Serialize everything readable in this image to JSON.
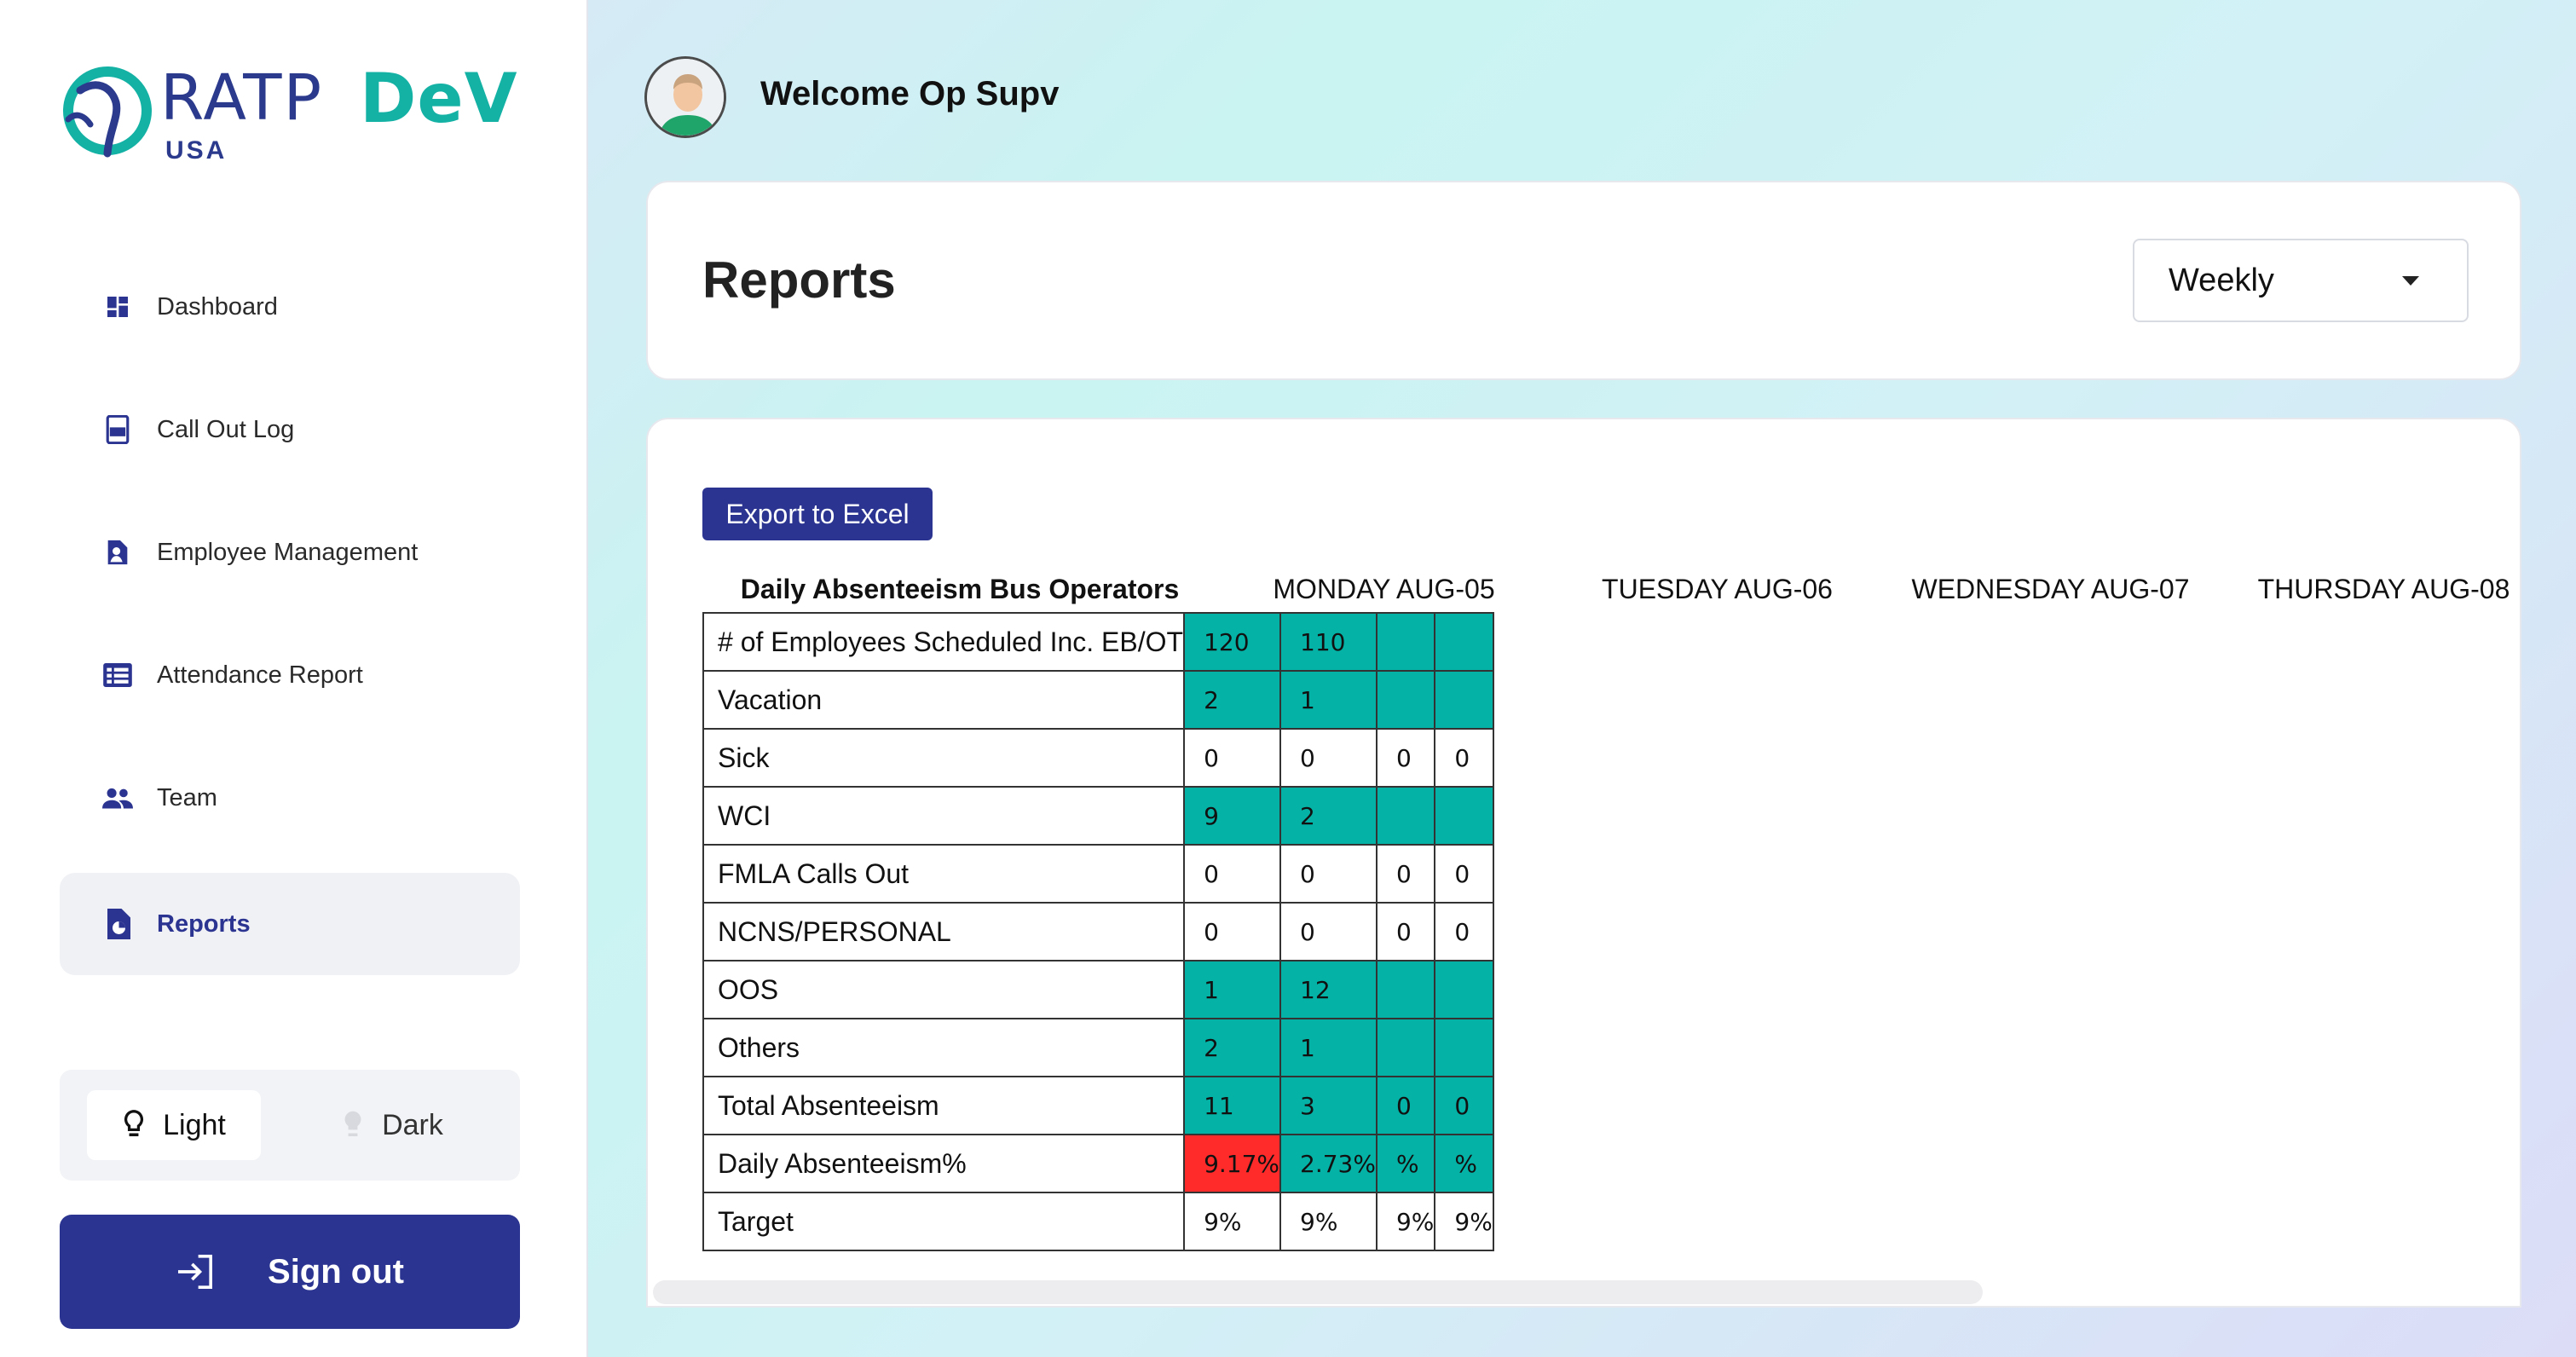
{
  "brand": {
    "name": "RATP",
    "suffix": "DeV",
    "region": "USA",
    "primary": "#2b3490",
    "accent": "#05b2a6"
  },
  "sidebar": {
    "items": [
      {
        "label": "Dashboard",
        "icon": "dashboard-icon"
      },
      {
        "label": "Call Out Log",
        "icon": "log-icon"
      },
      {
        "label": "Employee Management",
        "icon": "employee-icon"
      },
      {
        "label": "Attendance Report",
        "icon": "list-icon"
      },
      {
        "label": "Team",
        "icon": "team-icon"
      },
      {
        "label": "Reports",
        "icon": "report-icon",
        "active": true
      }
    ],
    "theme": {
      "light": "Light",
      "dark": "Dark",
      "selected": "Light"
    },
    "signout": "Sign out"
  },
  "header": {
    "welcome": "Welcome Op Supv"
  },
  "reports": {
    "title": "Reports",
    "period": {
      "value": "Weekly"
    },
    "export_label": "Export to Excel"
  },
  "table": {
    "headers": [
      "Daily Absenteeism Bus Operators",
      "MONDAY AUG-05",
      "TUESDAY AUG-06",
      "WEDNESDAY AUG-07",
      "THURSDAY AUG-08"
    ],
    "rows": [
      {
        "label": "# of Employees Scheduled Inc. EB/OT",
        "values": [
          "120",
          "110",
          "",
          ""
        ],
        "fill": [
          "teal",
          "teal",
          "teal",
          "teal"
        ]
      },
      {
        "label": "Vacation",
        "values": [
          "2",
          "1",
          "",
          ""
        ],
        "fill": [
          "teal",
          "teal",
          "teal",
          "teal"
        ]
      },
      {
        "label": "Sick",
        "values": [
          "0",
          "0",
          "0",
          "0"
        ],
        "fill": [
          "",
          "",
          "",
          ""
        ]
      },
      {
        "label": "WCI",
        "values": [
          "9",
          "2",
          "",
          ""
        ],
        "fill": [
          "teal",
          "teal",
          "teal",
          "teal"
        ]
      },
      {
        "label": "FMLA Calls Out",
        "values": [
          "0",
          "0",
          "0",
          "0"
        ],
        "fill": [
          "",
          "",
          "",
          ""
        ]
      },
      {
        "label": "NCNS/PERSONAL",
        "values": [
          "0",
          "0",
          "0",
          "0"
        ],
        "fill": [
          "",
          "",
          "",
          ""
        ]
      },
      {
        "label": "OOS",
        "values": [
          "1",
          "12",
          "",
          ""
        ],
        "fill": [
          "teal",
          "teal",
          "teal",
          "teal"
        ]
      },
      {
        "label": "Others",
        "values": [
          "2",
          "1",
          "",
          ""
        ],
        "fill": [
          "teal",
          "teal",
          "teal",
          "teal"
        ]
      },
      {
        "label": "Total Absenteeism",
        "values": [
          "11",
          "3",
          "0",
          "0"
        ],
        "fill": [
          "teal",
          "teal",
          "teal",
          "teal"
        ]
      },
      {
        "label": "Daily Absenteeism%",
        "values": [
          "9.17%",
          "2.73%",
          "%",
          "%"
        ],
        "fill": [
          "red",
          "teal",
          "teal",
          "teal"
        ]
      },
      {
        "label": "Target",
        "values": [
          "9%",
          "9%",
          "9%",
          "9%"
        ],
        "fill": [
          "",
          "",
          "",
          ""
        ]
      }
    ]
  }
}
